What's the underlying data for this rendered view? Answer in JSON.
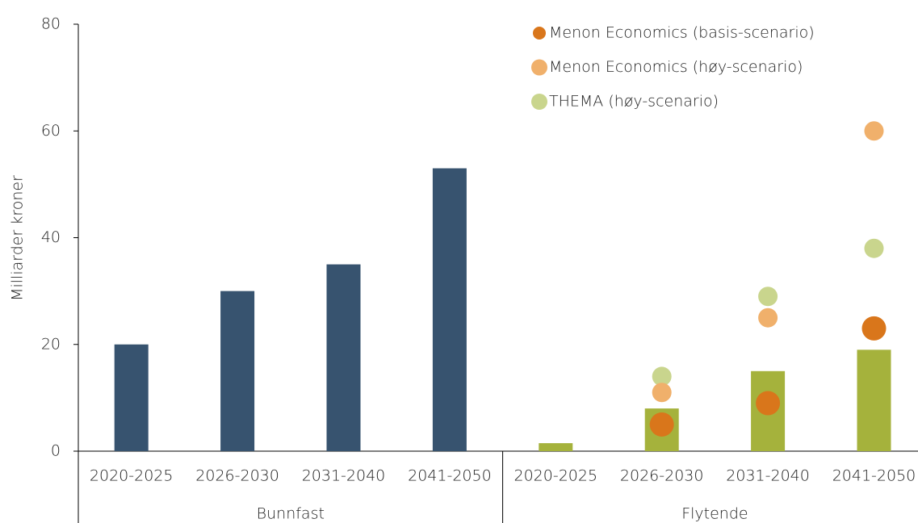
{
  "chart_data": {
    "type": "bar",
    "y_label": "Milliarder kroner",
    "categories": [
      "2020-2025",
      "2026-2030",
      "2031-2040",
      "2041-2050",
      "2020-2025",
      "2026-2030",
      "2031-2040",
      "2041-2050"
    ],
    "group_labels": [
      "Bunnfast",
      "Flytende"
    ],
    "bar_values": [
      20,
      30,
      35,
      53,
      1.5,
      8,
      15,
      19
    ],
    "bar_colors": [
      "#37536f",
      "#a5b23c"
    ],
    "series": [
      {
        "name": "Menon Economics (basis-scenario)",
        "color": "#d9761b",
        "values": [
          null,
          null,
          null,
          null,
          null,
          5,
          9,
          23
        ]
      },
      {
        "name": "Menon Economics (høy-scenario)",
        "color": "#f0b06b",
        "values": [
          null,
          null,
          null,
          null,
          null,
          11,
          25,
          60
        ]
      },
      {
        "name": "THEMA (høy-scenario)",
        "color": "#c9d58d",
        "values": [
          null,
          null,
          null,
          null,
          null,
          14,
          29,
          38
        ]
      }
    ],
    "ylim": [
      0,
      80
    ],
    "yticks": [
      0,
      20,
      40,
      60,
      80
    ],
    "legend": "top-right"
  }
}
